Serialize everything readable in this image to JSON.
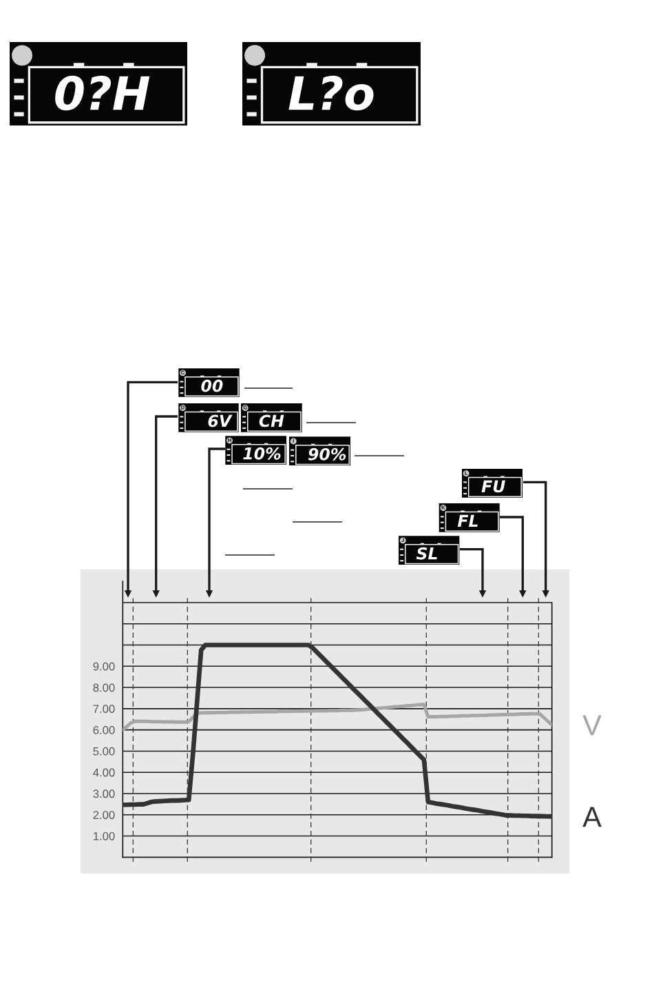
{
  "chart_data": {
    "type": "line",
    "categories": [
      null,
      null,
      null,
      null,
      null,
      null,
      null,
      null,
      null,
      null,
      null,
      null,
      null,
      null,
      null,
      null,
      null,
      null,
      null,
      null,
      null,
      null,
      null,
      null,
      null,
      null,
      null,
      null,
      null,
      null,
      null,
      null,
      null,
      null,
      null,
      null,
      null,
      null,
      null,
      null,
      null,
      null,
      null,
      null,
      null,
      null,
      null,
      null,
      null,
      null,
      null,
      null,
      null,
      null,
      null,
      null,
      null,
      null,
      null,
      null,
      null,
      null,
      null,
      null,
      null,
      null,
      null,
      null,
      null,
      null,
      null,
      null,
      null,
      null,
      null,
      null,
      null,
      null,
      null,
      null,
      null,
      null,
      null,
      null,
      null,
      null,
      null,
      null,
      null,
      null,
      null,
      null,
      null,
      null,
      null,
      null,
      null,
      null,
      null,
      null,
      null,
      null,
      null,
      null,
      null
    ],
    "ylim": [
      0,
      13
    ],
    "yticks": [
      {
        "value": 1,
        "label": "1.00"
      },
      {
        "value": 2,
        "label": "2.00"
      },
      {
        "value": 3,
        "label": "3.00"
      },
      {
        "value": 4,
        "label": "4.00"
      },
      {
        "value": 5,
        "label": "5.00"
      },
      {
        "value": 6,
        "label": "6.00"
      },
      {
        "value": 7,
        "label": "7.00"
      },
      {
        "value": 8,
        "label": "8.00"
      },
      {
        "value": 9,
        "label": "9.00"
      },
      {
        "value": 10,
        "label": null
      },
      {
        "value": 11,
        "label": null
      },
      {
        "value": 12,
        "label": null
      }
    ],
    "tick_labels": "y",
    "grid": "y",
    "series": [
      {
        "name": "V",
        "color": "#a6a6a6",
        "values": [
          6.0,
          6.16,
          6.33,
          6.41,
          6.4,
          6.4,
          6.4,
          6.39,
          6.39,
          6.39,
          6.38,
          6.38,
          6.38,
          6.37,
          6.37,
          6.36,
          6.39,
          6.59,
          6.78,
          6.8,
          6.81,
          6.81,
          6.81,
          6.82,
          6.82,
          6.82,
          6.83,
          6.83,
          6.83,
          6.84,
          6.84,
          6.84,
          6.85,
          6.85,
          6.85,
          6.86,
          6.86,
          6.86,
          6.87,
          6.87,
          6.87,
          6.88,
          6.88,
          6.88,
          6.89,
          6.89,
          6.89,
          6.9,
          6.9,
          6.9,
          6.91,
          6.91,
          6.91,
          6.92,
          6.92,
          6.92,
          6.93,
          6.94,
          6.95,
          6.97,
          6.99,
          7.0,
          7.02,
          7.04,
          7.05,
          7.07,
          7.09,
          7.1,
          7.12,
          7.14,
          7.15,
          7.17,
          7.19,
          7.2,
          6.61,
          6.62,
          6.62,
          6.63,
          6.63,
          6.64,
          6.65,
          6.65,
          6.66,
          6.66,
          6.67,
          6.68,
          6.68,
          6.69,
          6.69,
          6.7,
          6.7,
          6.71,
          6.72,
          6.72,
          6.73,
          6.73,
          6.74,
          6.75,
          6.75,
          6.76,
          6.76,
          6.76,
          6.59,
          6.41,
          6.24
        ]
      },
      {
        "name": "A",
        "color": "#333333",
        "values": [
          2.47,
          2.47,
          2.48,
          2.48,
          2.49,
          2.49,
          2.55,
          2.61,
          2.63,
          2.64,
          2.65,
          2.66,
          2.67,
          2.67,
          2.68,
          2.69,
          2.7,
          4.84,
          7.3,
          9.76,
          10.0,
          10.0,
          10.0,
          10.0,
          10.0,
          10.0,
          10.0,
          10.0,
          10.0,
          10.0,
          10.0,
          10.0,
          10.0,
          10.0,
          10.0,
          10.0,
          10.0,
          10.0,
          10.0,
          10.0,
          10.0,
          10.0,
          10.0,
          10.0,
          10.0,
          10.0,
          9.87,
          9.67,
          9.48,
          9.28,
          9.09,
          8.89,
          8.7,
          8.5,
          8.31,
          8.11,
          7.91,
          7.72,
          7.53,
          7.33,
          7.14,
          6.94,
          6.74,
          6.55,
          6.35,
          6.16,
          5.96,
          5.77,
          5.57,
          5.38,
          5.18,
          4.98,
          4.79,
          4.59,
          2.6,
          2.57,
          2.53,
          2.5,
          2.47,
          2.44,
          2.4,
          2.37,
          2.34,
          2.3,
          2.27,
          2.24,
          2.21,
          2.17,
          2.14,
          2.11,
          2.07,
          2.04,
          2.01,
          1.97,
          1.97,
          1.96,
          1.96,
          1.95,
          1.95,
          1.94,
          1.94,
          1.93,
          1.93,
          1.92,
          1.92
        ]
      }
    ],
    "annotations": [
      "0?H",
      "L?o",
      "C",
      "00",
      "D",
      "6V",
      "G",
      "CH",
      "H",
      "10%",
      "I",
      "90%",
      "L",
      "FU",
      "K",
      "FL",
      "J",
      "SL"
    ]
  }
}
